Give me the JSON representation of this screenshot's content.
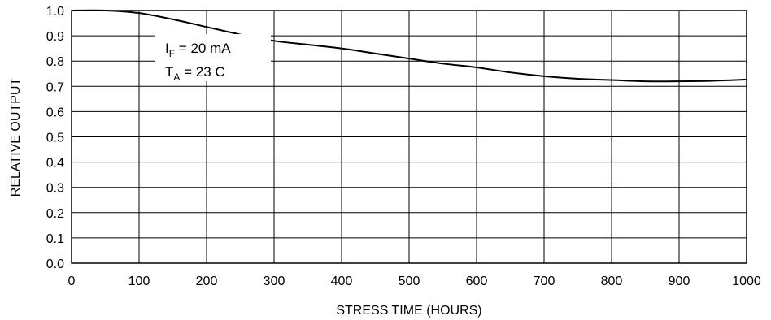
{
  "chart_data": {
    "type": "line",
    "title": "",
    "xlabel": "STRESS TIME (HOURS)",
    "ylabel": "RELATIVE OUTPUT",
    "xlim": [
      0,
      1000
    ],
    "ylim": [
      0,
      1.0
    ],
    "grid": true,
    "x_ticks": [
      0,
      100,
      200,
      300,
      400,
      500,
      600,
      700,
      800,
      900,
      1000
    ],
    "x_tick_labels": [
      "0",
      "100",
      "200",
      "300",
      "400",
      "500",
      "600",
      "700",
      "800",
      "900",
      "1000"
    ],
    "y_ticks": [
      0,
      0.1,
      0.2,
      0.3,
      0.4,
      0.5,
      0.6,
      0.7,
      0.8,
      0.9,
      1.0
    ],
    "y_tick_labels": [
      "0.0",
      "0.1",
      "0.2",
      "0.3",
      "0.4",
      "0.5",
      "0.6",
      "0.7",
      "0.8",
      "0.9",
      "1.0"
    ],
    "series": [
      {
        "x": [
          0,
          50,
          100,
          150,
          200,
          250,
          300,
          350,
          400,
          450,
          500,
          550,
          600,
          650,
          700,
          750,
          800,
          850,
          900,
          950,
          1000
        ],
        "values": [
          1.0,
          1.0,
          0.99,
          0.965,
          0.935,
          0.905,
          0.88,
          0.865,
          0.85,
          0.83,
          0.81,
          0.79,
          0.775,
          0.755,
          0.74,
          0.73,
          0.725,
          0.72,
          0.72,
          0.722,
          0.727
        ]
      }
    ],
    "annotations": [
      {
        "main": "I",
        "sub": "F",
        "rest": " = 20 mA"
      },
      {
        "main": "T",
        "sub": "A",
        "rest": " = 23 C"
      }
    ]
  }
}
